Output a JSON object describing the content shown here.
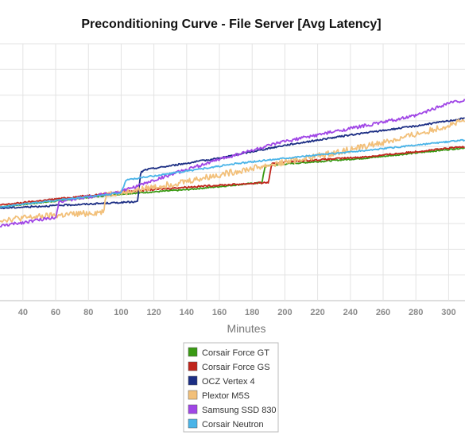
{
  "chart_data": {
    "type": "line",
    "title": "Preconditioning Curve - File Server [Avg Latency]",
    "xlabel": "Minutes",
    "ylabel": "",
    "x_ticks": [
      40,
      60,
      80,
      100,
      120,
      140,
      160,
      180,
      200,
      220,
      240,
      260,
      280,
      300
    ],
    "xlim": [
      26,
      310
    ],
    "ylim": [
      0,
      100
    ],
    "grid": true,
    "legend_position": "bottom-center",
    "series": [
      {
        "name": "Corsair Force GT",
        "color": "#3a9a14",
        "noise": 0.25,
        "points": [
          [
            26,
            36.5
          ],
          [
            100,
            41.5
          ],
          [
            140,
            43.2
          ],
          [
            186,
            46
          ],
          [
            188,
            52.5
          ],
          [
            200,
            53.2
          ],
          [
            250,
            55.5
          ],
          [
            310,
            59.5
          ]
        ]
      },
      {
        "name": "Corsair Force GS",
        "color": "#c0251c",
        "noise": 0.3,
        "points": [
          [
            26,
            37.2
          ],
          [
            100,
            42.3
          ],
          [
            140,
            44.2
          ],
          [
            190,
            46
          ],
          [
            192,
            53.2
          ],
          [
            200,
            54
          ],
          [
            250,
            56
          ],
          [
            310,
            60
          ]
        ]
      },
      {
        "name": "OCZ Vertex 4",
        "color": "#1c2e84",
        "noise": 0.3,
        "points": [
          [
            26,
            36
          ],
          [
            110,
            38.5
          ],
          [
            112,
            50
          ],
          [
            115,
            51
          ],
          [
            130,
            52.5
          ],
          [
            160,
            55.5
          ],
          [
            200,
            60.5
          ],
          [
            240,
            64.5
          ],
          [
            280,
            68
          ],
          [
            310,
            71
          ]
        ]
      },
      {
        "name": "Plextor M5S",
        "color": "#f2c07a",
        "noise": 1.2,
        "points": [
          [
            26,
            31.5
          ],
          [
            89,
            34.5
          ],
          [
            91,
            41.5
          ],
          [
            105,
            42.5
          ],
          [
            140,
            46.5
          ],
          [
            180,
            51.5
          ],
          [
            230,
            57.5
          ],
          [
            270,
            63
          ],
          [
            310,
            70
          ]
        ]
      },
      {
        "name": "Samsung SSD 830",
        "color": "#a046e6",
        "noise": 0.6,
        "points": [
          [
            26,
            29
          ],
          [
            60,
            32.5
          ],
          [
            62,
            38.5
          ],
          [
            100,
            42.5
          ],
          [
            130,
            49
          ],
          [
            160,
            55
          ],
          [
            200,
            62
          ],
          [
            240,
            67
          ],
          [
            280,
            72
          ],
          [
            300,
            77
          ],
          [
            310,
            78
          ]
        ]
      },
      {
        "name": "Corsair Neutron",
        "color": "#4ab4e8",
        "noise": 0.3,
        "points": [
          [
            26,
            36.5
          ],
          [
            100,
            42
          ],
          [
            103,
            47
          ],
          [
            130,
            49.5
          ],
          [
            170,
            53.3
          ],
          [
            200,
            55.5
          ],
          [
            250,
            58.5
          ],
          [
            310,
            62.5
          ]
        ]
      }
    ]
  }
}
